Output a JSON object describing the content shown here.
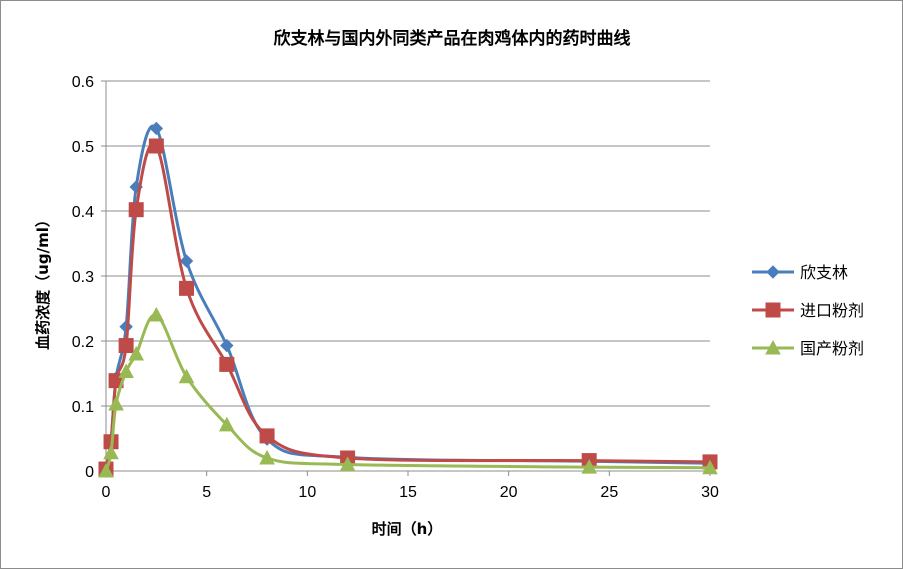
{
  "chart_data": {
    "type": "line",
    "title": "欣支林与国内外同类产品在肉鸡体内的药时曲线",
    "xlabel": "时间（h）",
    "ylabel": "血药浓度（ug/ml）",
    "xlim": [
      0,
      30
    ],
    "ylim": [
      0,
      0.6
    ],
    "xticks": [
      "0",
      "5",
      "10",
      "15",
      "20",
      "25",
      "30"
    ],
    "yticks": [
      "0",
      "0.1",
      "0.2",
      "0.3",
      "0.4",
      "0.5",
      "0.6"
    ],
    "grid": true,
    "legend_position": "right",
    "series": [
      {
        "name": "欣支林",
        "color": "#4a7ebb",
        "marker": "diamond",
        "x": [
          0,
          0.25,
          0.5,
          1,
          1.5,
          2.5,
          4,
          6,
          8,
          12,
          24,
          30
        ],
        "y": [
          0.0,
          0.047,
          0.143,
          0.222,
          0.437,
          0.527,
          0.323,
          0.193,
          0.049,
          0.021,
          0.015,
          0.012
        ]
      },
      {
        "name": "进口粉剂",
        "color": "#be4b48",
        "marker": "square",
        "x": [
          0,
          0.25,
          0.5,
          1,
          1.5,
          2.5,
          4,
          6,
          8,
          12,
          24,
          30
        ],
        "y": [
          0.003,
          0.045,
          0.139,
          0.193,
          0.402,
          0.5,
          0.281,
          0.164,
          0.054,
          0.02,
          0.016,
          0.014
        ]
      },
      {
        "name": "国产粉剂",
        "color": "#98b954",
        "marker": "triangle",
        "x": [
          0,
          0.25,
          0.5,
          1,
          1.5,
          2.5,
          4,
          6,
          8,
          12,
          24,
          30
        ],
        "y": [
          0.0,
          0.028,
          0.103,
          0.153,
          0.18,
          0.24,
          0.145,
          0.071,
          0.02,
          0.01,
          0.006,
          0.005
        ]
      }
    ]
  }
}
